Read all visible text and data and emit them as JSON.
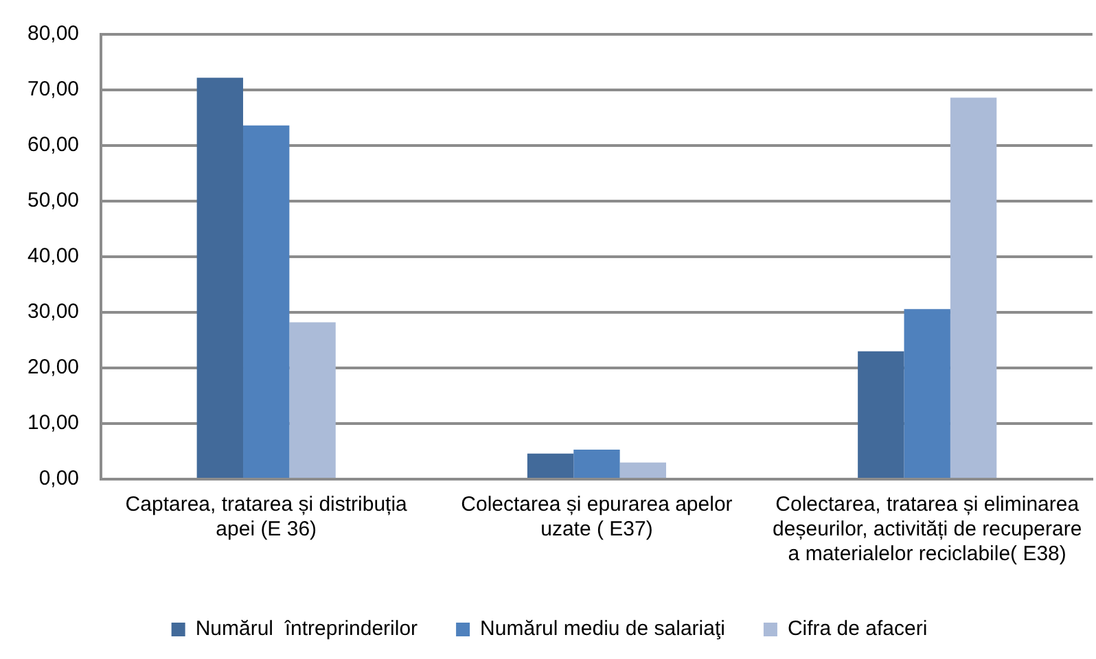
{
  "chart_data": {
    "type": "bar",
    "categories": [
      "Captarea, tratarea și distribuția apei (E 36)",
      "Colectarea și epurarea apelor uzate ( E37)",
      "Colectarea, tratarea și eliminarea deșeurilor, activități de recuperare a materialelor reciclabile( E38)"
    ],
    "series": [
      {
        "name": "Numărul  întreprinderilor",
        "color": "#426a9a",
        "values": [
          72.2,
          4.6,
          23.0
        ]
      },
      {
        "name": "Numărul mediu de salariaţi",
        "color": "#4f81bd",
        "values": [
          63.6,
          5.3,
          30.6
        ]
      },
      {
        "name": "Cifra de afaceri",
        "color": "#abbbd8",
        "values": [
          28.2,
          3.0,
          68.6
        ]
      }
    ],
    "ylim": [
      0,
      80
    ],
    "yticks": [
      {
        "value": 0,
        "label": "0,00"
      },
      {
        "value": 10,
        "label": "10,00"
      },
      {
        "value": 20,
        "label": "20,00"
      },
      {
        "value": 30,
        "label": "30,00"
      },
      {
        "value": 40,
        "label": "40,00"
      },
      {
        "value": 50,
        "label": "50,00"
      },
      {
        "value": 60,
        "label": "60,00"
      },
      {
        "value": 70,
        "label": "70,00"
      },
      {
        "value": 80,
        "label": "80,00"
      }
    ],
    "grid": "y",
    "legend": "bottom"
  }
}
